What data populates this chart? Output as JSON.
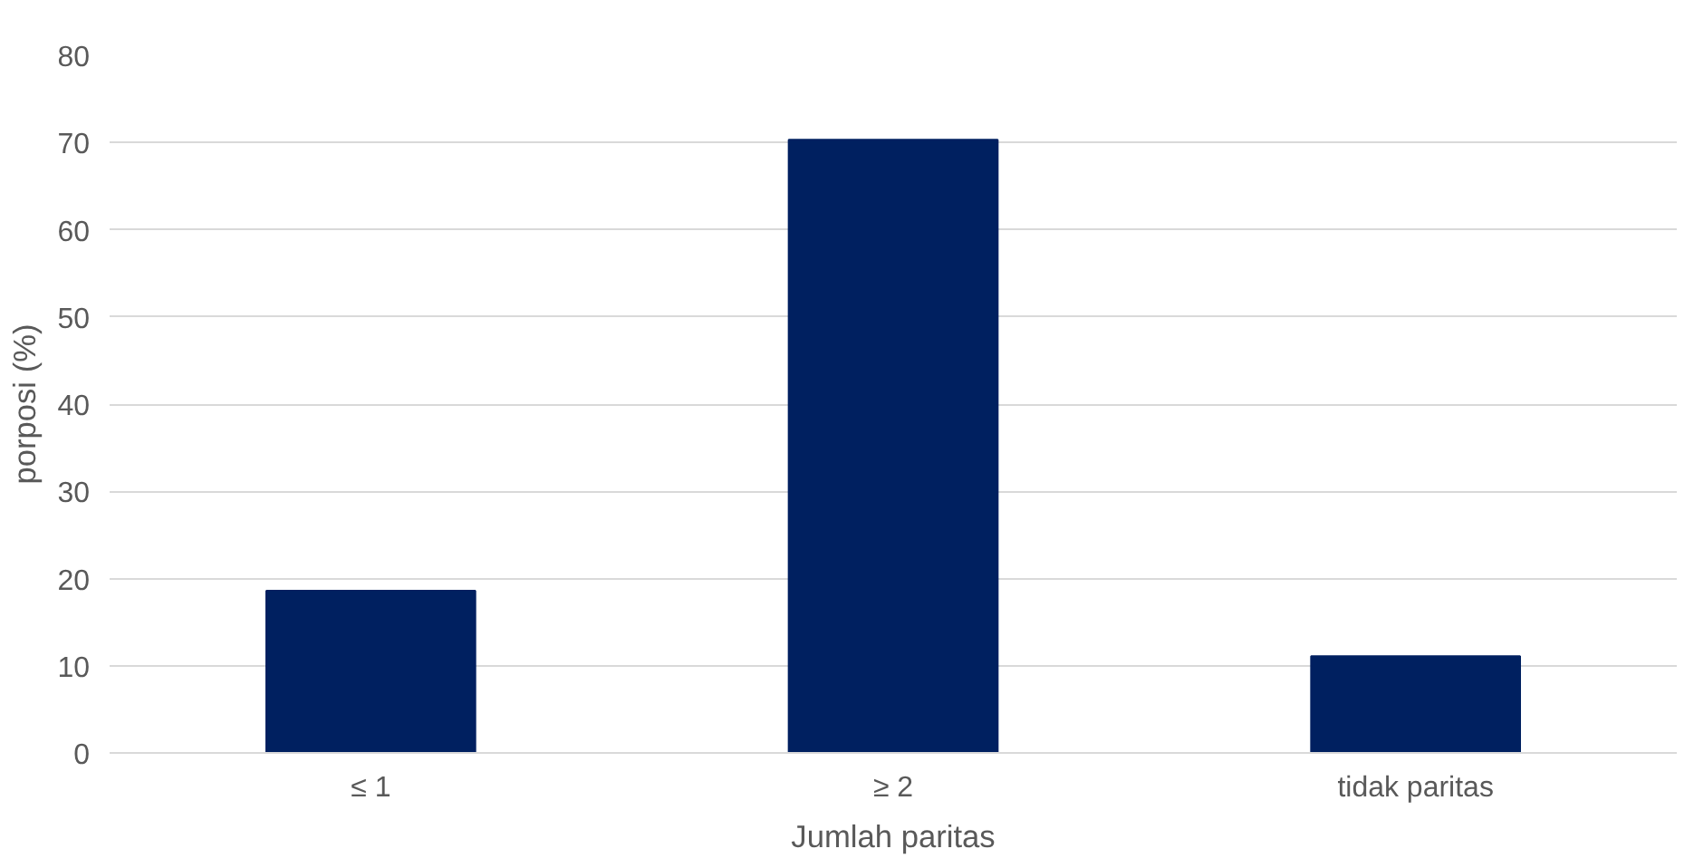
{
  "chart_data": {
    "type": "bar",
    "xlabel": "Jumlah paritas",
    "ylabel": "porposi (%)",
    "categories": [
      "≤ 1",
      "≥ 2",
      "tidak paritas"
    ],
    "values": [
      18.6,
      70.3,
      11.1
    ],
    "color": "#002060",
    "ylim": [
      0,
      80
    ],
    "yticks": [
      0,
      10,
      20,
      30,
      40,
      50,
      60,
      70,
      80
    ],
    "grid": "y"
  }
}
